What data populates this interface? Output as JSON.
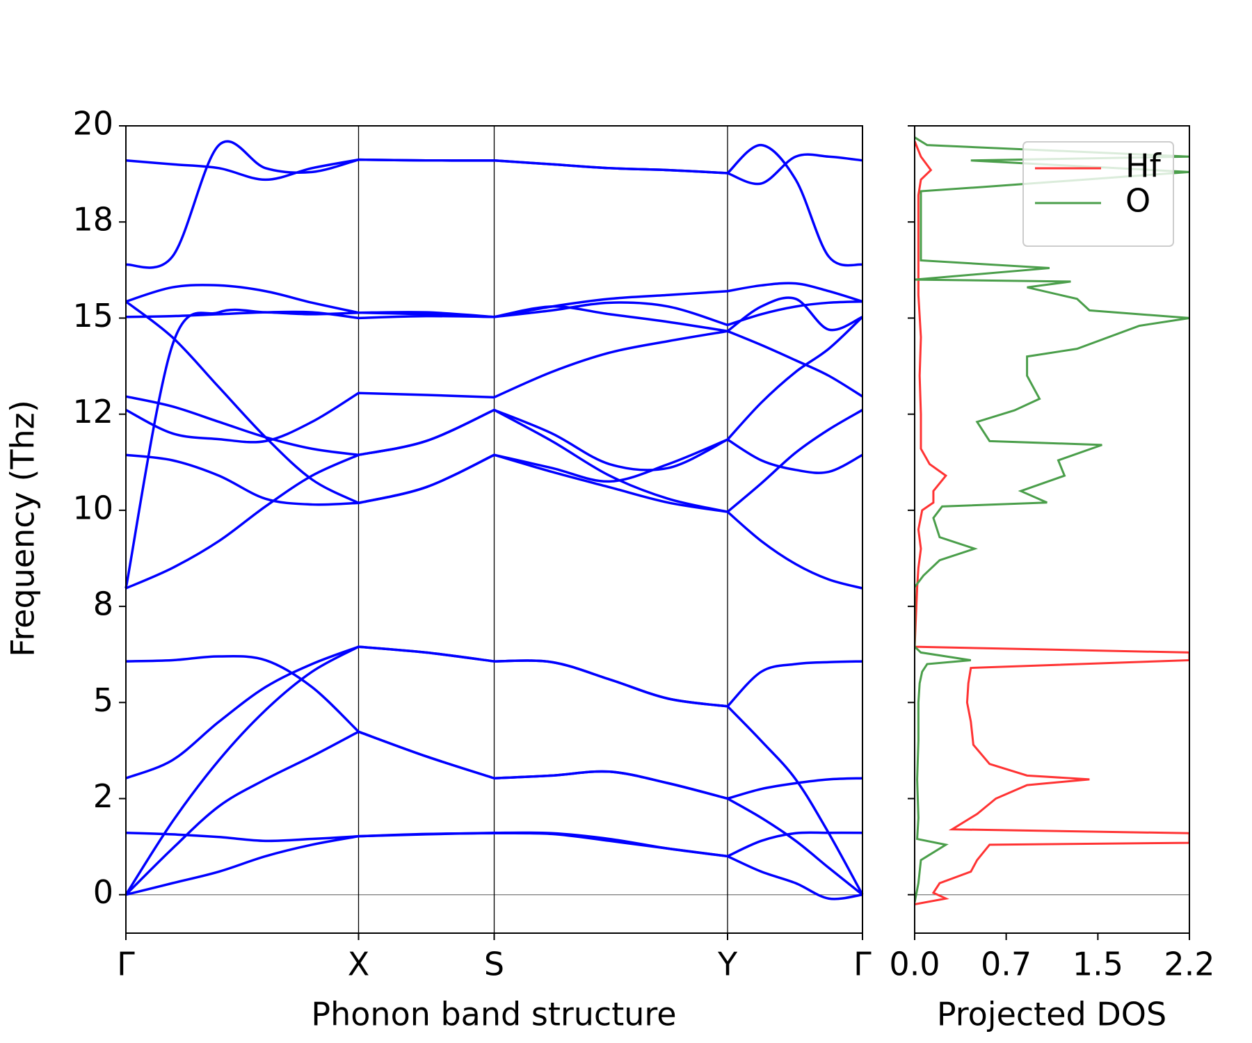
{
  "chart_data": [
    {
      "type": "bands",
      "xlabel": "Phonon band structure",
      "ylabel": "Frequency (Thz)",
      "color": "#0000ff",
      "x": [
        0,
        0.2,
        0.4,
        0.6,
        0.8,
        1.0,
        1.29,
        1.583,
        1.831,
        2.079,
        2.331,
        2.586,
        2.731,
        2.879,
        3.021,
        3.166
      ],
      "xlim": [
        0,
        3.166
      ],
      "xticks": [
        {
          "value": 0,
          "label": "Γ"
        },
        {
          "value": 1.0,
          "label": "X"
        },
        {
          "value": 1.583,
          "label": "S"
        },
        {
          "value": 2.586,
          "label": "Y"
        },
        {
          "value": 3.166,
          "label": "Γ"
        }
      ],
      "ylim": [
        -1,
        20
      ],
      "yticks": [
        0,
        {
          "value": 2.5,
          "label": "2"
        },
        5,
        {
          "value": 7.5,
          "label": "8"
        },
        10,
        {
          "value": 12.5,
          "label": "12"
        },
        15,
        {
          "value": 17.5,
          "label": "18"
        },
        20
      ],
      "bands": [
        [
          0,
          0.3,
          0.6,
          1.0,
          1.3,
          1.52,
          1.58,
          1.6,
          1.58,
          1.4,
          1.2,
          1.0,
          0.6,
          0.3,
          -0.1,
          0
        ],
        [
          0,
          1.2,
          2.3,
          3.0,
          3.6,
          4.24,
          3.6,
          3.03,
          3.1,
          3.2,
          2.9,
          2.5,
          2.0,
          1.4,
          0.7,
          0
        ],
        [
          0,
          1.9,
          3.5,
          4.8,
          5.8,
          6.45,
          6.3,
          6.07,
          6.05,
          5.6,
          5.1,
          4.9,
          4.0,
          3.0,
          1.6,
          0
        ],
        [
          1.61,
          1.57,
          1.5,
          1.4,
          1.45,
          1.52,
          1.57,
          1.61,
          1.6,
          1.45,
          1.2,
          1.0,
          1.4,
          1.6,
          1.61,
          1.61
        ],
        [
          3.03,
          3.5,
          4.5,
          5.4,
          6.0,
          6.45,
          6.3,
          6.07,
          6.05,
          5.6,
          5.1,
          4.9,
          5.8,
          6.0,
          6.05,
          6.07
        ],
        [
          6.07,
          6.1,
          6.2,
          6.1,
          5.4,
          4.24,
          3.6,
          3.03,
          3.1,
          3.2,
          2.9,
          2.5,
          2.75,
          2.9,
          3.0,
          3.03
        ],
        [
          7.97,
          14.3,
          15.15,
          15.15,
          15.1,
          15.14,
          15.15,
          15.03,
          15.3,
          15.1,
          14.9,
          14.66,
          15.3,
          15.5,
          14.7,
          15.03
        ],
        [
          7.97,
          8.5,
          9.2,
          10.1,
          10.9,
          11.44,
          11.8,
          12.61,
          11.8,
          10.9,
          10.3,
          9.96,
          9.2,
          8.6,
          8.2,
          7.97
        ],
        [
          11.44,
          11.3,
          10.9,
          10.3,
          10.15,
          10.19,
          10.6,
          11.44,
          11.0,
          10.6,
          10.2,
          9.96,
          10.7,
          11.5,
          12.1,
          12.61
        ],
        [
          12.61,
          12.0,
          11.85,
          11.8,
          12.3,
          13.05,
          13.0,
          12.94,
          13.6,
          14.1,
          14.4,
          14.66,
          14.3,
          13.9,
          13.5,
          12.96
        ],
        [
          12.96,
          12.7,
          12.3,
          11.9,
          11.6,
          11.44,
          11.8,
          12.61,
          12.0,
          11.2,
          11.1,
          11.84,
          11.3,
          11.05,
          11.0,
          11.44
        ],
        [
          15.43,
          14.5,
          13.2,
          11.9,
          10.8,
          10.19,
          10.6,
          11.44,
          11.1,
          10.75,
          11.2,
          11.84,
          12.8,
          13.6,
          14.2,
          15.03
        ],
        [
          15.03,
          15.05,
          15.1,
          15.15,
          15.15,
          15.0,
          15.05,
          15.03,
          15.2,
          15.4,
          15.3,
          14.82,
          15.1,
          15.3,
          15.4,
          15.43
        ],
        [
          15.43,
          15.8,
          15.85,
          15.7,
          15.4,
          15.14,
          15.1,
          15.03,
          15.3,
          15.5,
          15.6,
          15.7,
          15.85,
          15.9,
          15.7,
          15.43
        ],
        [
          16.39,
          16.6,
          19.5,
          18.9,
          18.8,
          19.12,
          19.1,
          19.1,
          19.0,
          18.9,
          18.85,
          18.77,
          18.5,
          19.2,
          19.2,
          19.1
        ],
        [
          19.1,
          19.0,
          18.9,
          18.6,
          18.9,
          19.12,
          19.1,
          19.1,
          19.0,
          18.9,
          18.85,
          18.77,
          19.5,
          18.6,
          16.6,
          16.39
        ]
      ]
    },
    {
      "type": "dos",
      "xlabel": "Projected DOS",
      "xlim": [
        0,
        2.2
      ],
      "xticks": [
        {
          "value": 0,
          "label": "0.0"
        },
        {
          "value": 0.733,
          "label": "0.7"
        },
        {
          "value": 1.467,
          "label": "1.5"
        },
        {
          "value": 2.2,
          "label": "2.2"
        }
      ],
      "legend": "upper right",
      "series": [
        {
          "name": "Hf",
          "color": "#ff3333",
          "y": [
            -0.25,
            -0.1,
            0.05,
            0.3,
            0.6,
            0.9,
            1.3,
            1.35,
            1.6,
            1.7,
            2.1,
            2.5,
            2.85,
            3.0,
            3.1,
            3.4,
            3.9,
            4.5,
            5.0,
            5.5,
            5.9,
            6.1,
            6.3,
            6.45,
            8.0,
            8.5,
            9.0,
            9.5,
            10.0,
            10.2,
            10.5,
            10.9,
            11.2,
            11.6,
            12.5,
            13.5,
            14.5,
            15.6,
            16.5,
            17.5,
            18.2,
            18.6,
            18.85,
            19.2,
            19.6
          ],
          "values": [
            0,
            0.25,
            0.15,
            0.2,
            0.45,
            0.5,
            0.6,
            2.2,
            2.2,
            0.3,
            0.5,
            0.65,
            0.9,
            1.4,
            0.9,
            0.6,
            0.47,
            0.45,
            0.42,
            0.43,
            0.45,
            2.2,
            2.2,
            0,
            0.02,
            0.03,
            0.05,
            0.03,
            0.06,
            0.15,
            0.15,
            0.25,
            0.12,
            0.05,
            0.05,
            0.04,
            0.05,
            0.03,
            0.03,
            0.03,
            0.03,
            0.05,
            0.13,
            0.05,
            0
          ]
        },
        {
          "name": "O",
          "color": "#4a9e4a",
          "y": [
            -0.2,
            0.3,
            0.9,
            1.0,
            1.3,
            1.45,
            2.0,
            3.0,
            4.0,
            5.0,
            5.5,
            5.8,
            6.0,
            6.1,
            6.3,
            6.45,
            8.0,
            8.3,
            8.7,
            9.0,
            9.3,
            9.8,
            10.1,
            10.2,
            10.5,
            10.9,
            11.3,
            11.7,
            11.8,
            12.3,
            12.6,
            12.9,
            13.5,
            14.0,
            14.2,
            14.8,
            15.0,
            15.2,
            15.5,
            15.8,
            15.95,
            16.0,
            16.3,
            16.5,
            17.5,
            18.3,
            18.4,
            18.8,
            19.1,
            19.2,
            19.5,
            19.7
          ],
          "values": [
            0,
            0.03,
            0.05,
            0.1,
            0.25,
            0.02,
            0.03,
            0.02,
            0.03,
            0.03,
            0.04,
            0.06,
            0.1,
            0.45,
            0.05,
            0,
            0,
            0.07,
            0.2,
            0.48,
            0.2,
            0.15,
            0.22,
            1.06,
            0.85,
            1.2,
            1.15,
            1.5,
            0.6,
            0.5,
            0.8,
            1.0,
            0.9,
            0.9,
            1.3,
            1.8,
            2.2,
            1.4,
            1.3,
            0.9,
            1.25,
            0,
            1.08,
            0.05,
            0.05,
            0.05,
            0.5,
            2.2,
            0.45,
            2.2,
            0.1,
            0
          ]
        }
      ]
    }
  ]
}
